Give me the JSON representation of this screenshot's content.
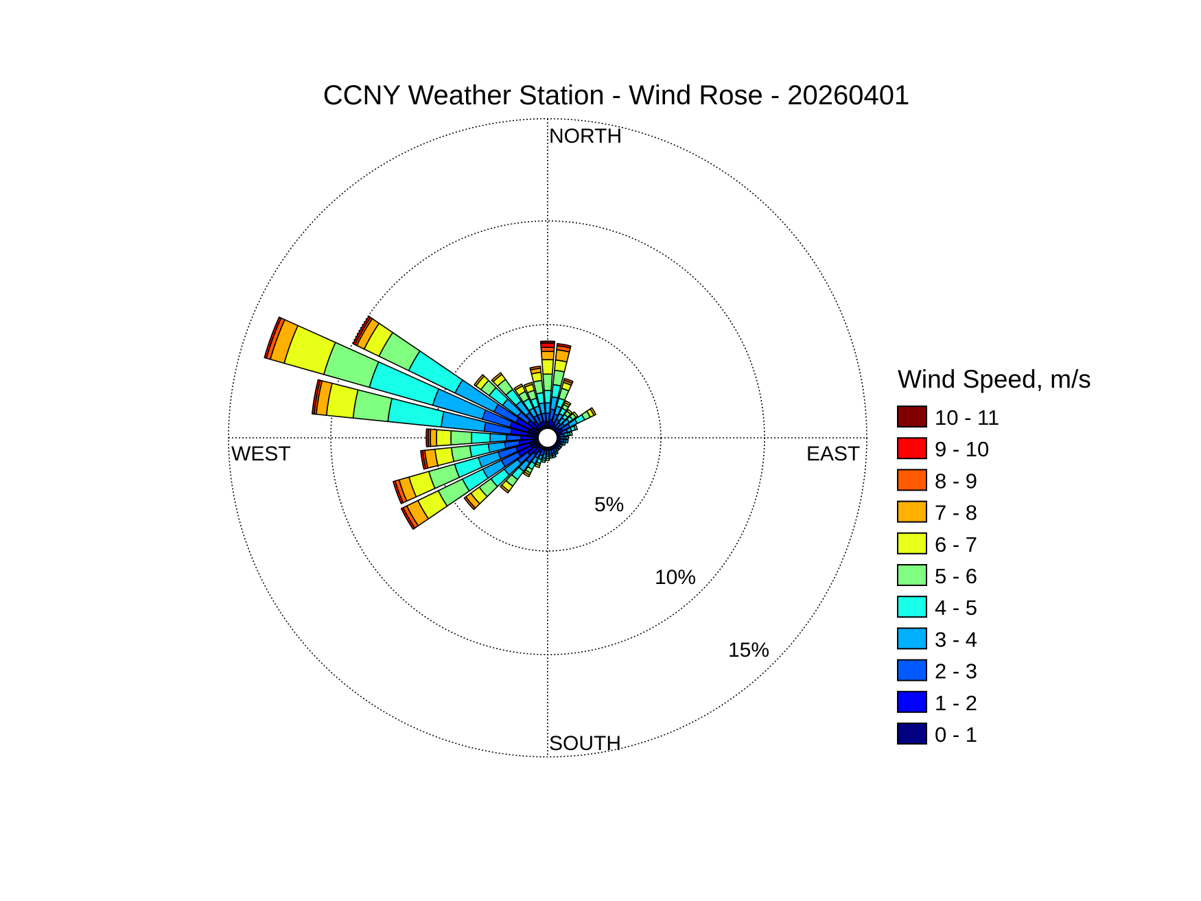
{
  "chart_data": {
    "type": "wind-rose",
    "title": "CCNY Weather Station - Wind Rose - 20260401",
    "directions": [
      "NORTH",
      "EAST",
      "SOUTH",
      "WEST"
    ],
    "radial_ticks": [
      5,
      10,
      15
    ],
    "radial_tick_labels": [
      "5%",
      "10%",
      "15%"
    ],
    "radial_max": 15.5,
    "grid": true,
    "legend": {
      "title": "Wind Speed, m/s",
      "placement": "right",
      "bins": [
        {
          "label": "10 - 11",
          "color": "#800000"
        },
        {
          "label": "9 - 10",
          "color": "#ff0000"
        },
        {
          "label": "8 - 9",
          "color": "#ff5a00"
        },
        {
          "label": "7 - 8",
          "color": "#ffb000"
        },
        {
          "label": "6 - 7",
          "color": "#e8ff17"
        },
        {
          "label": "5 - 6",
          "color": "#80ff80"
        },
        {
          "label": "4 - 5",
          "color": "#17ffe8"
        },
        {
          "label": "3 - 4",
          "color": "#00b0ff"
        },
        {
          "label": "2 - 3",
          "color": "#005aff"
        },
        {
          "label": "1 - 2",
          "color": "#0000ff"
        },
        {
          "label": "0 - 1",
          "color": "#000080"
        }
      ]
    },
    "speed_bins_low_to_high": [
      "0 - 1",
      "1 - 2",
      "2 - 3",
      "3 - 4",
      "4 - 5",
      "5 - 6",
      "6 - 7",
      "7 - 8",
      "8 - 9",
      "9 - 10",
      "10 - 11"
    ],
    "sectors": [
      {
        "direction_deg": 0,
        "cumulative_pct": [
          0.5,
          0.8,
          1.2,
          1.7,
          2.3,
          3.1,
          3.8,
          4.2,
          4.4,
          4.6,
          4.7
        ]
      },
      {
        "direction_deg": 10,
        "cumulative_pct": [
          0.5,
          0.9,
          1.4,
          2.0,
          2.6,
          3.3,
          3.8,
          4.3,
          4.5,
          4.6,
          4.6
        ]
      },
      {
        "direction_deg": 20,
        "cumulative_pct": [
          0.5,
          0.8,
          1.2,
          1.6,
          2.0,
          2.5,
          2.8,
          2.9,
          3.0,
          3.0,
          3.0
        ]
      },
      {
        "direction_deg": 30,
        "cumulative_pct": [
          0.4,
          0.7,
          1.0,
          1.3,
          1.6,
          1.8,
          1.9,
          2.0,
          2.0,
          2.0,
          2.0
        ]
      },
      {
        "direction_deg": 40,
        "cumulative_pct": [
          0.4,
          0.6,
          0.9,
          1.2,
          1.4,
          1.6,
          1.7,
          1.7,
          1.7,
          1.7,
          1.7
        ]
      },
      {
        "direction_deg": 50,
        "cumulative_pct": [
          0.4,
          0.7,
          1.0,
          1.3,
          1.5,
          1.7,
          1.8,
          1.8,
          1.8,
          1.8,
          1.8
        ]
      },
      {
        "direction_deg": 60,
        "cumulative_pct": [
          0.5,
          0.8,
          1.2,
          1.6,
          2.0,
          2.3,
          2.5,
          2.6,
          2.6,
          2.6,
          2.6
        ]
      },
      {
        "direction_deg": 70,
        "cumulative_pct": [
          0.4,
          0.7,
          1.0,
          1.2,
          1.4,
          1.5,
          1.5,
          1.5,
          1.5,
          1.5,
          1.5
        ]
      },
      {
        "direction_deg": 80,
        "cumulative_pct": [
          0.4,
          0.6,
          0.8,
          1.0,
          1.1,
          1.2,
          1.2,
          1.2,
          1.2,
          1.2,
          1.2
        ]
      },
      {
        "direction_deg": 90,
        "cumulative_pct": [
          0.4,
          0.6,
          0.8,
          0.9,
          1.0,
          1.0,
          1.0,
          1.0,
          1.0,
          1.0,
          1.0
        ]
      },
      {
        "direction_deg": 100,
        "cumulative_pct": [
          0.4,
          0.6,
          0.8,
          0.9,
          1.0,
          1.0,
          1.0,
          1.0,
          1.0,
          1.0,
          1.0
        ]
      },
      {
        "direction_deg": 110,
        "cumulative_pct": [
          0.4,
          0.6,
          0.7,
          0.8,
          0.9,
          0.9,
          0.9,
          0.9,
          0.9,
          0.9,
          0.9
        ]
      },
      {
        "direction_deg": 120,
        "cumulative_pct": [
          0.4,
          0.6,
          0.7,
          0.8,
          0.8,
          0.8,
          0.8,
          0.8,
          0.8,
          0.8,
          0.8
        ]
      },
      {
        "direction_deg": 130,
        "cumulative_pct": [
          0.4,
          0.6,
          0.7,
          0.8,
          0.8,
          0.8,
          0.8,
          0.8,
          0.8,
          0.8,
          0.8
        ]
      },
      {
        "direction_deg": 140,
        "cumulative_pct": [
          0.4,
          0.6,
          0.7,
          0.8,
          0.8,
          0.8,
          0.8,
          0.8,
          0.8,
          0.8,
          0.8
        ]
      },
      {
        "direction_deg": 150,
        "cumulative_pct": [
          0.4,
          0.6,
          0.8,
          0.9,
          0.9,
          0.9,
          0.9,
          0.9,
          0.9,
          0.9,
          0.9
        ]
      },
      {
        "direction_deg": 160,
        "cumulative_pct": [
          0.4,
          0.6,
          0.8,
          0.9,
          1.0,
          1.0,
          1.0,
          1.0,
          1.0,
          1.0,
          1.0
        ]
      },
      {
        "direction_deg": 170,
        "cumulative_pct": [
          0.4,
          0.6,
          0.8,
          0.9,
          1.0,
          1.0,
          1.0,
          1.0,
          1.0,
          1.0,
          1.0
        ]
      },
      {
        "direction_deg": 180,
        "cumulative_pct": [
          0.4,
          0.6,
          0.8,
          0.9,
          1.0,
          1.1,
          1.1,
          1.1,
          1.1,
          1.1,
          1.1
        ]
      },
      {
        "direction_deg": 190,
        "cumulative_pct": [
          0.4,
          0.6,
          0.8,
          1.0,
          1.1,
          1.2,
          1.2,
          1.2,
          1.2,
          1.2,
          1.2
        ]
      },
      {
        "direction_deg": 200,
        "cumulative_pct": [
          0.4,
          0.6,
          0.9,
          1.1,
          1.3,
          1.4,
          1.5,
          1.5,
          1.5,
          1.5,
          1.5
        ]
      },
      {
        "direction_deg": 210,
        "cumulative_pct": [
          0.5,
          0.8,
          1.1,
          1.4,
          1.7,
          1.9,
          2.0,
          2.1,
          2.1,
          2.1,
          2.1
        ]
      },
      {
        "direction_deg": 220,
        "cumulative_pct": [
          0.6,
          1.0,
          1.5,
          2.0,
          2.5,
          2.9,
          3.2,
          3.3,
          3.3,
          3.3,
          3.3
        ]
      },
      {
        "direction_deg": 230,
        "cumulative_pct": [
          0.7,
          1.2,
          1.8,
          2.6,
          3.4,
          4.1,
          4.6,
          4.9,
          5.0,
          5.0,
          5.0
        ]
      },
      {
        "direction_deg": 240,
        "cumulative_pct": [
          0.9,
          1.6,
          2.5,
          3.5,
          4.6,
          5.9,
          7.0,
          7.6,
          7.8,
          7.9,
          7.9
        ]
      },
      {
        "direction_deg": 250,
        "cumulative_pct": [
          0.9,
          1.6,
          2.5,
          3.5,
          4.7,
          6.0,
          7.0,
          7.5,
          7.7,
          7.8,
          7.8
        ]
      },
      {
        "direction_deg": 260,
        "cumulative_pct": [
          0.8,
          1.4,
          2.1,
          2.9,
          3.8,
          4.7,
          5.5,
          6.0,
          6.1,
          6.2,
          6.2
        ]
      },
      {
        "direction_deg": 270,
        "cumulative_pct": [
          0.8,
          1.3,
          2.0,
          2.8,
          3.7,
          4.7,
          5.4,
          5.7,
          5.8,
          5.9,
          5.9
        ]
      },
      {
        "direction_deg": 280,
        "cumulative_pct": [
          1.0,
          1.8,
          3.1,
          5.2,
          7.8,
          9.5,
          10.8,
          11.3,
          11.4,
          11.5,
          11.5
        ]
      },
      {
        "direction_deg": 290,
        "cumulative_pct": [
          1.0,
          1.9,
          3.3,
          5.8,
          9.0,
          11.3,
          13.3,
          14.0,
          14.2,
          14.3,
          14.3
        ]
      },
      {
        "direction_deg": 300,
        "cumulative_pct": [
          0.9,
          1.7,
          2.9,
          5.0,
          7.5,
          9.1,
          9.9,
          10.3,
          10.4,
          10.5,
          10.5
        ]
      },
      {
        "direction_deg": 310,
        "cumulative_pct": [
          0.7,
          1.2,
          1.8,
          2.7,
          3.5,
          4.0,
          4.3,
          4.4,
          4.4,
          4.4,
          4.4
        ]
      },
      {
        "direction_deg": 320,
        "cumulative_pct": [
          0.6,
          1.0,
          1.5,
          2.2,
          2.9,
          3.5,
          3.8,
          3.9,
          3.9,
          3.9,
          3.9
        ]
      },
      {
        "direction_deg": 330,
        "cumulative_pct": [
          0.5,
          0.8,
          1.2,
          1.6,
          2.1,
          2.5,
          2.8,
          2.9,
          2.9,
          2.9,
          2.9
        ]
      },
      {
        "direction_deg": 340,
        "cumulative_pct": [
          0.5,
          0.8,
          1.2,
          1.6,
          2.0,
          2.4,
          2.7,
          2.8,
          2.8,
          2.8,
          2.8
        ]
      },
      {
        "direction_deg": 350,
        "cumulative_pct": [
          0.5,
          0.8,
          1.2,
          1.7,
          2.2,
          2.8,
          3.2,
          3.4,
          3.5,
          3.5,
          3.5
        ]
      }
    ]
  }
}
